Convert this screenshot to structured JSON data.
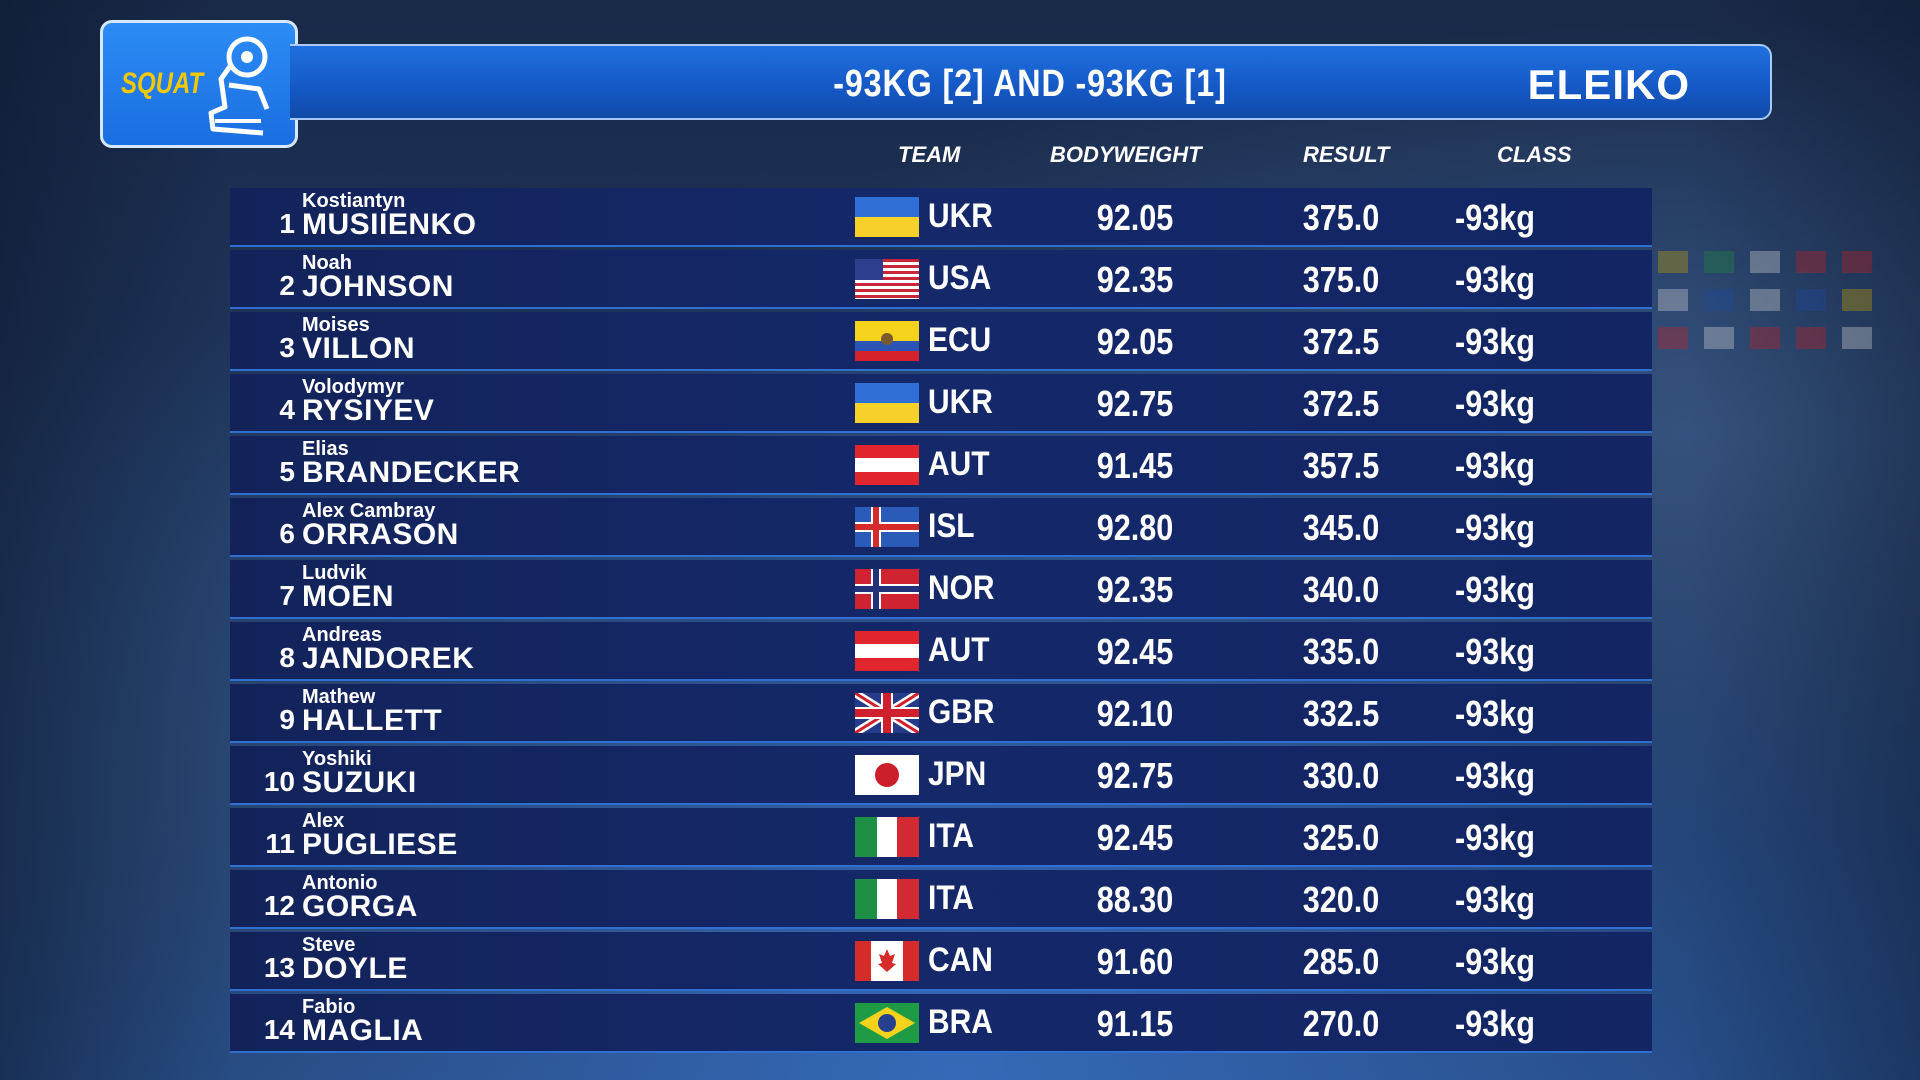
{
  "header": {
    "logo_label": "SQUAT",
    "title": "-93KG  [2] AND  -93KG  [1]",
    "brand": "ELEIKO"
  },
  "columns": {
    "team": "TEAM",
    "bodyweight": "BODYWEIGHT",
    "result": "RESULT",
    "class": "CLASS"
  },
  "rows": [
    {
      "rank": "1",
      "first": "Kostiantyn",
      "last": "MUSIIENKO",
      "flag": "UKR",
      "team": "UKR",
      "bodyweight": "92.05",
      "result": "375.0",
      "class": "-93kg"
    },
    {
      "rank": "2",
      "first": "Noah",
      "last": "JOHNSON",
      "flag": "USA",
      "team": "USA",
      "bodyweight": "92.35",
      "result": "375.0",
      "class": "-93kg"
    },
    {
      "rank": "3",
      "first": "Moises",
      "last": "VILLON",
      "flag": "ECU",
      "team": "ECU",
      "bodyweight": "92.05",
      "result": "372.5",
      "class": "-93kg"
    },
    {
      "rank": "4",
      "first": "Volodymyr",
      "last": "RYSIYEV",
      "flag": "UKR",
      "team": "UKR",
      "bodyweight": "92.75",
      "result": "372.5",
      "class": "-93kg"
    },
    {
      "rank": "5",
      "first": "Elias",
      "last": "BRANDECKER",
      "flag": "AUT",
      "team": "AUT",
      "bodyweight": "91.45",
      "result": "357.5",
      "class": "-93kg"
    },
    {
      "rank": "6",
      "first": "Alex Cambray",
      "last": "ORRASON",
      "flag": "ISL",
      "team": "ISL",
      "bodyweight": "92.80",
      "result": "345.0",
      "class": "-93kg"
    },
    {
      "rank": "7",
      "first": "Ludvik",
      "last": "MOEN",
      "flag": "NOR",
      "team": "NOR",
      "bodyweight": "92.35",
      "result": "340.0",
      "class": "-93kg"
    },
    {
      "rank": "8",
      "first": "Andreas",
      "last": "JANDOREK",
      "flag": "AUT",
      "team": "AUT",
      "bodyweight": "92.45",
      "result": "335.0",
      "class": "-93kg"
    },
    {
      "rank": "9",
      "first": "Mathew",
      "last": "HALLETT",
      "flag": "GBR",
      "team": "GBR",
      "bodyweight": "92.10",
      "result": "332.5",
      "class": "-93kg"
    },
    {
      "rank": "10",
      "first": "Yoshiki",
      "last": "SUZUKI",
      "flag": "JPN",
      "team": "JPN",
      "bodyweight": "92.75",
      "result": "330.0",
      "class": "-93kg"
    },
    {
      "rank": "11",
      "first": "Alex",
      "last": "PUGLIESE",
      "flag": "ITA",
      "team": "ITA",
      "bodyweight": "92.45",
      "result": "325.0",
      "class": "-93kg"
    },
    {
      "rank": "12",
      "first": "Antonio",
      "last": "GORGA",
      "flag": "ITA",
      "team": "ITA",
      "bodyweight": "88.30",
      "result": "320.0",
      "class": "-93kg"
    },
    {
      "rank": "13",
      "first": "Steve",
      "last": "DOYLE",
      "flag": "CAN",
      "team": "CAN",
      "bodyweight": "91.60",
      "result": "285.0",
      "class": "-93kg"
    },
    {
      "rank": "14",
      "first": "Fabio",
      "last": "MAGLIA",
      "flag": "BRA",
      "team": "BRA",
      "bodyweight": "91.15",
      "result": "270.0",
      "class": "-93kg"
    }
  ],
  "colors": {
    "header_blue": "#1558c4",
    "row_bg": "#13235a",
    "row_divider": "#2e6fd0",
    "logo_text": "#f5c800"
  }
}
